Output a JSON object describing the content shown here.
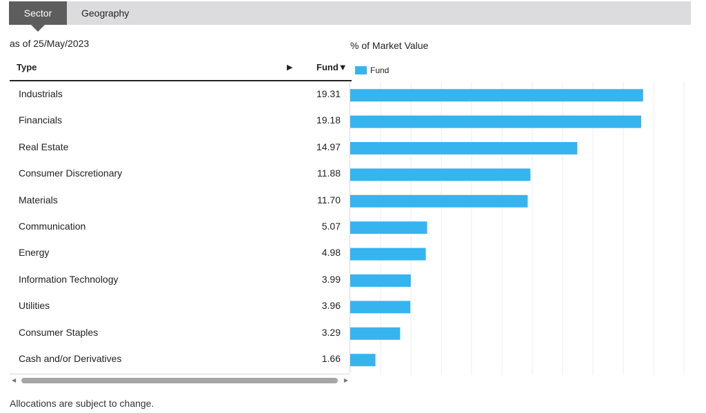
{
  "tabs": [
    {
      "label": "Sector",
      "active": true
    },
    {
      "label": "Geography",
      "active": false
    }
  ],
  "as_of": "as of 25/May/2023",
  "table": {
    "col_type": "Type",
    "col_fund": "Fund▼",
    "expand_arrow": "▶",
    "rows": [
      {
        "label": "Industrials",
        "value": "19.31"
      },
      {
        "label": "Financials",
        "value": "19.18"
      },
      {
        "label": "Real Estate",
        "value": "14.97"
      },
      {
        "label": "Consumer Discretionary",
        "value": "11.88"
      },
      {
        "label": "Materials",
        "value": "11.70"
      },
      {
        "label": "Communication",
        "value": "5.07"
      },
      {
        "label": "Energy",
        "value": "4.98"
      },
      {
        "label": "Information Technology",
        "value": "3.99"
      },
      {
        "label": "Utilities",
        "value": "3.96"
      },
      {
        "label": "Consumer Staples",
        "value": "3.29"
      },
      {
        "label": "Cash and/or Derivatives",
        "value": "1.66"
      }
    ]
  },
  "chart_data": {
    "type": "bar",
    "orientation": "horizontal",
    "title": "% of Market Value",
    "categories": [
      "Industrials",
      "Financials",
      "Real Estate",
      "Consumer Discretionary",
      "Materials",
      "Communication",
      "Energy",
      "Information Technology",
      "Utilities",
      "Consumer Staples",
      "Cash and/or Derivatives"
    ],
    "series": [
      {
        "name": "Fund",
        "values": [
          19.31,
          19.18,
          14.97,
          11.88,
          11.7,
          5.07,
          4.98,
          3.99,
          3.96,
          3.29,
          1.66
        ],
        "color": "#36b4f0"
      }
    ],
    "xlim": [
      0,
      22
    ],
    "grid": true,
    "legend": "top-left"
  },
  "scrollbar": {
    "left_arrow": "◀",
    "right_arrow": "▶"
  },
  "footnote": "Allocations are subject to change."
}
